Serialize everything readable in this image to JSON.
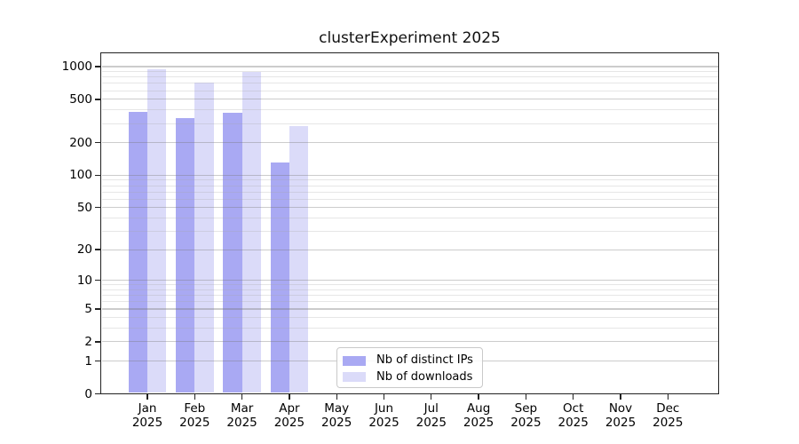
{
  "title": "clusterExperiment 2025",
  "chart_data": {
    "type": "bar",
    "title": "clusterExperiment 2025",
    "xlabel": "",
    "ylabel": "",
    "y_scale": "log1p",
    "grid": true,
    "categories": [
      "Jan 2025",
      "Feb 2025",
      "Mar 2025",
      "Apr 2025",
      "May 2025",
      "Jun 2025",
      "Jul 2025",
      "Aug 2025",
      "Sep 2025",
      "Oct 2025",
      "Nov 2025",
      "Dec 2025"
    ],
    "series": [
      {
        "name": "Nb of distinct IPs",
        "color": "#a9a9f3",
        "values": [
          385,
          335,
          380,
          130,
          0,
          0,
          0,
          0,
          0,
          0,
          0,
          0
        ]
      },
      {
        "name": "Nb of downloads",
        "color": "#dbdbf9",
        "values": [
          945,
          715,
          895,
          285,
          0,
          0,
          0,
          0,
          0,
          0,
          0,
          0
        ]
      }
    ],
    "y_ticks": [
      0,
      1,
      2,
      5,
      10,
      20,
      50,
      100,
      200,
      500,
      1000
    ],
    "y_minor_gridlines": [
      3,
      4,
      6,
      7,
      8,
      9,
      30,
      40,
      60,
      70,
      80,
      90,
      300,
      400,
      600,
      700,
      800,
      900
    ],
    "ylim": [
      0,
      1350
    ],
    "legend_position": "lower-center"
  },
  "legend": {
    "items": [
      {
        "label": "Nb of distinct IPs",
        "color": "#a9a9f3"
      },
      {
        "label": "Nb of downloads",
        "color": "#dbdbf9"
      }
    ]
  },
  "colors": {
    "spine": "#222222",
    "grid_major": "#cbcbcb",
    "grid_minor": "#e6e6e6",
    "text": "#000000"
  }
}
